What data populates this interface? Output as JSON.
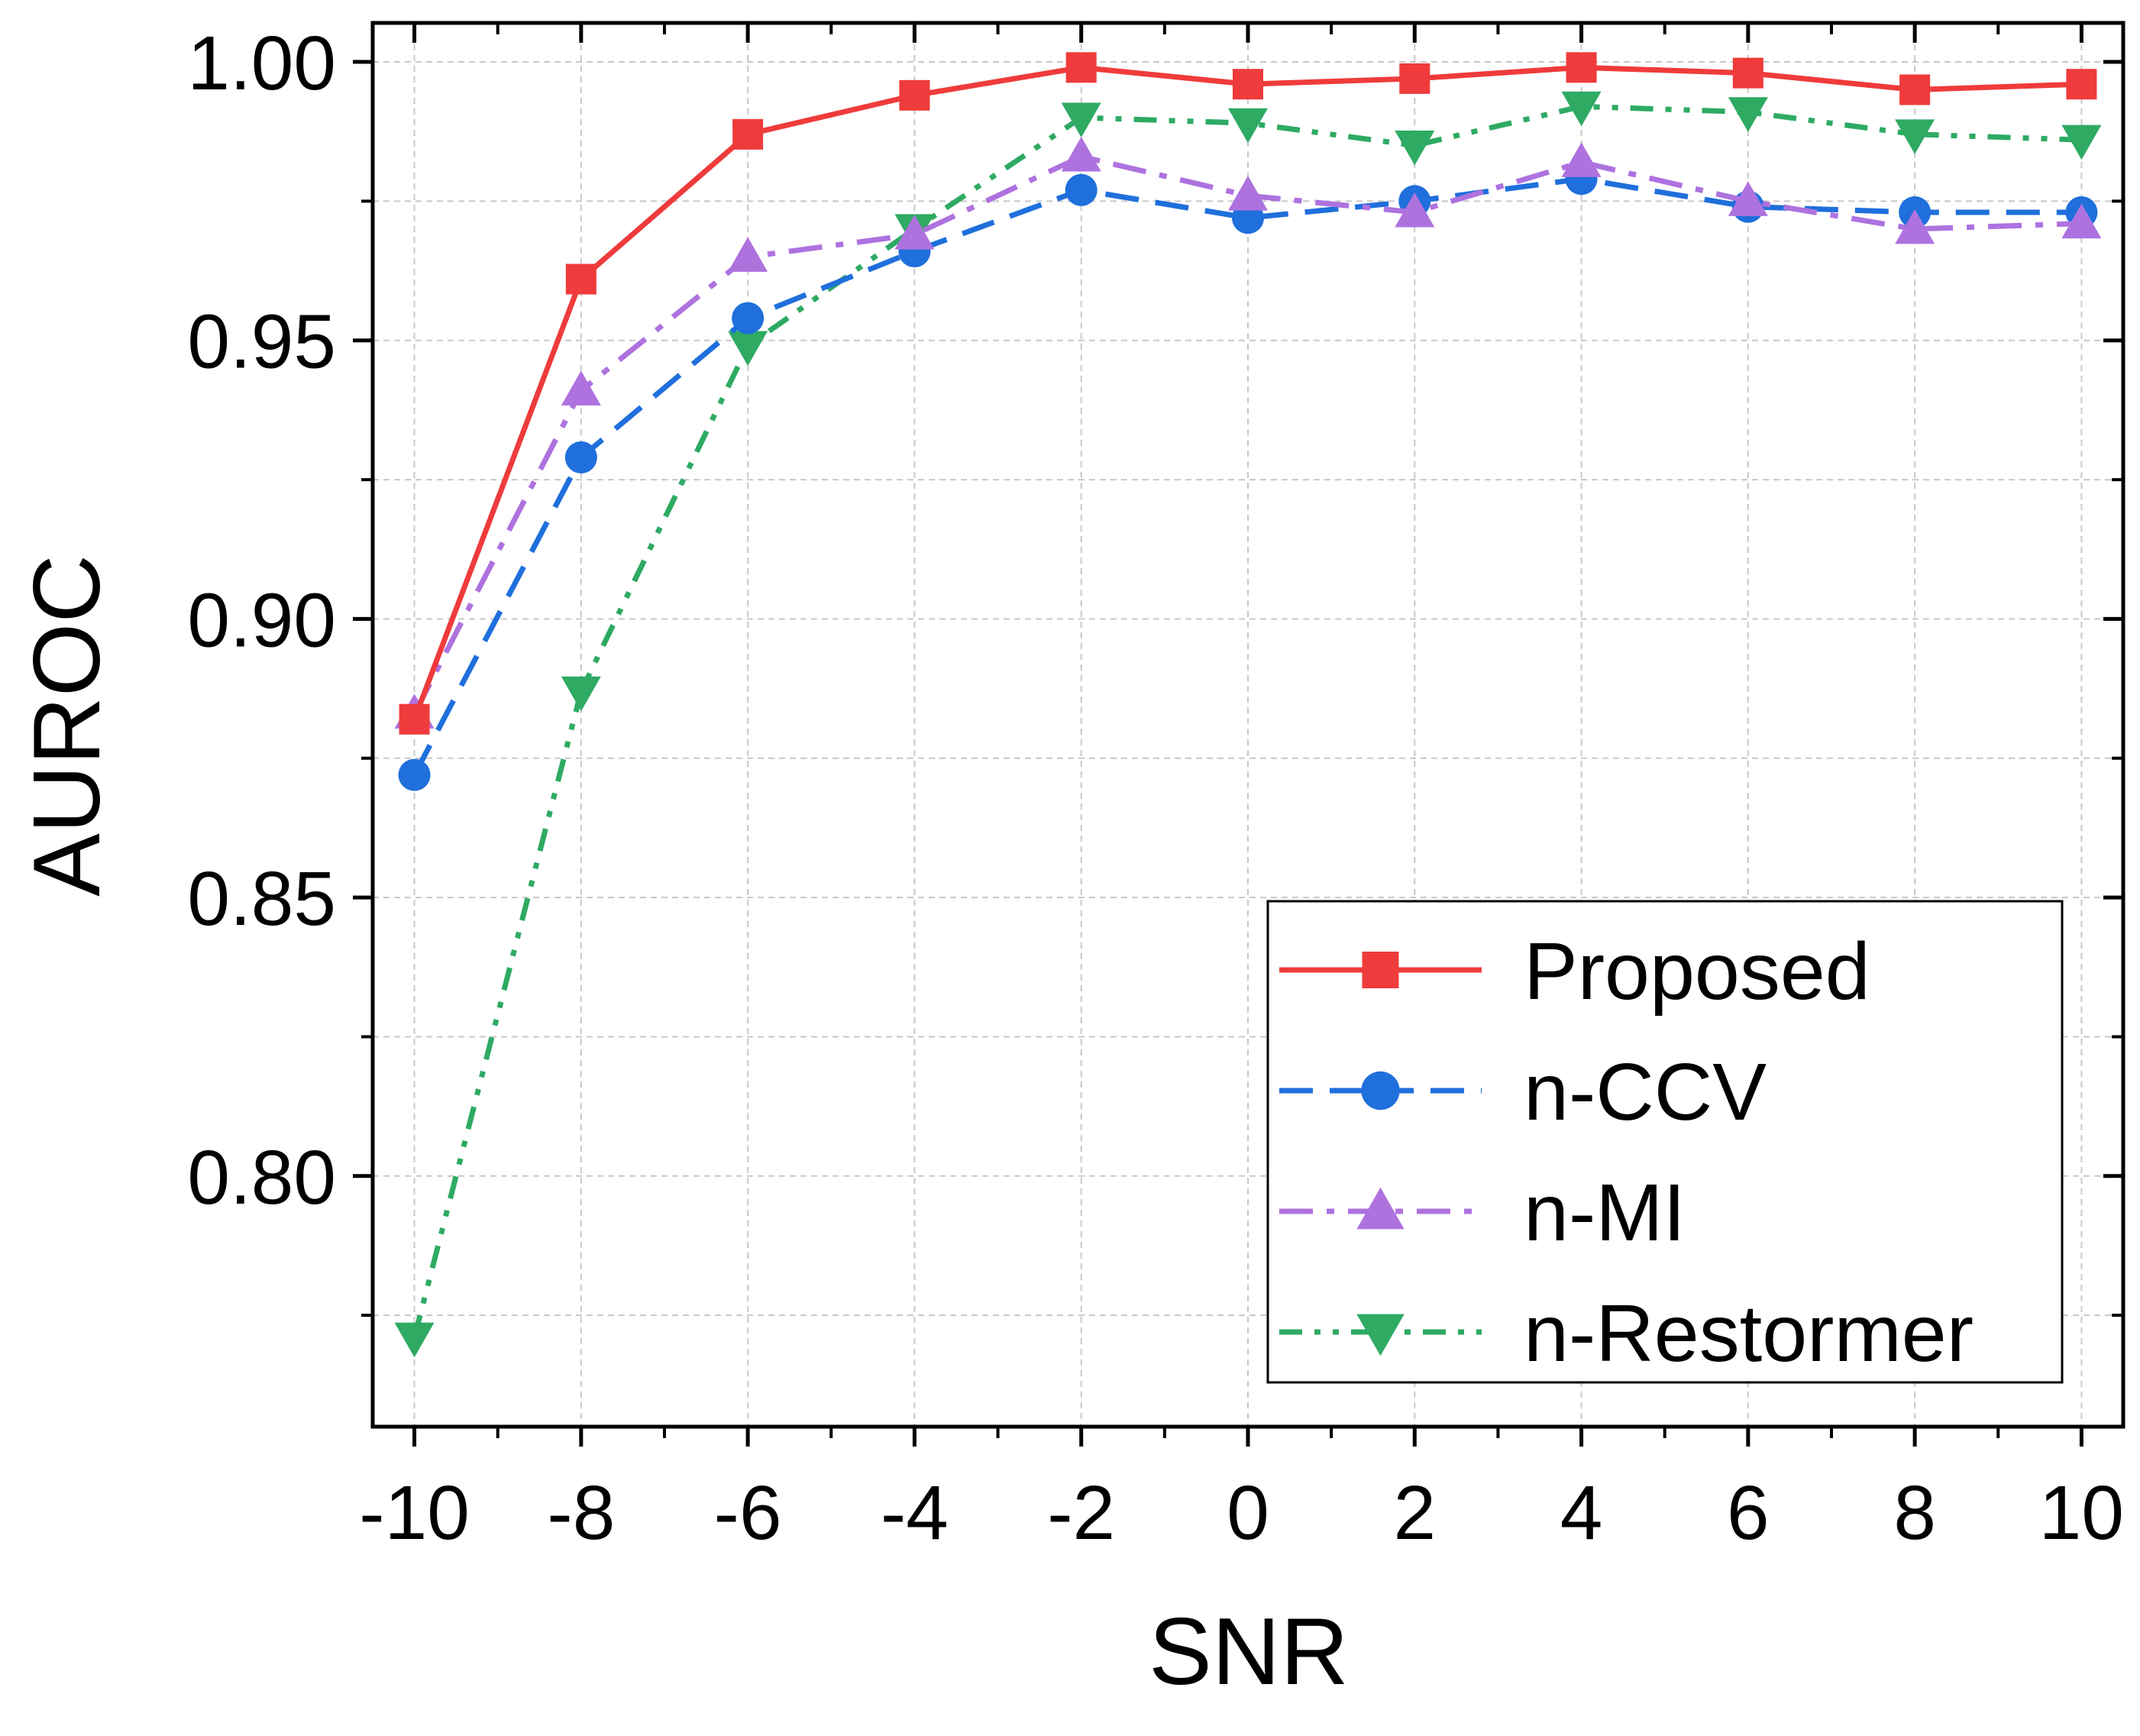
{
  "chart_data": {
    "type": "line",
    "title": "",
    "xlabel": "SNR",
    "ylabel": "AUROC",
    "x": [
      -10,
      -8,
      -6,
      -4,
      -2,
      0,
      2,
      4,
      6,
      8,
      10
    ],
    "xlim": [
      -10.5,
      10.5
    ],
    "ylim": [
      0.755,
      1.007
    ],
    "xticks": [
      "-10",
      "-8",
      "-6",
      "-4",
      "-2",
      "0",
      "2",
      "4",
      "6",
      "8",
      "10"
    ],
    "yticks": [
      "0.80",
      "0.85",
      "0.90",
      "0.95",
      "1.00"
    ],
    "grid": true,
    "legend_position": "bottom-right",
    "series": [
      {
        "name": "Proposed",
        "color": "#ef3b3b",
        "marker": "square",
        "dash": "solid",
        "values": [
          0.882,
          0.961,
          0.987,
          0.994,
          0.999,
          0.996,
          0.997,
          0.999,
          0.998,
          0.995,
          0.996
        ]
      },
      {
        "name": "n-CCV",
        "color": "#1f6fdc",
        "marker": "circle",
        "dash": "dash",
        "values": [
          0.872,
          0.929,
          0.954,
          0.966,
          0.977,
          0.972,
          0.975,
          0.979,
          0.974,
          0.973,
          0.973
        ]
      },
      {
        "name": "n-MI",
        "color": "#ae72df",
        "marker": "triangle-up",
        "dash": "dash-dot",
        "values": [
          0.883,
          0.941,
          0.965,
          0.969,
          0.983,
          0.976,
          0.973,
          0.982,
          0.975,
          0.97,
          0.971
        ]
      },
      {
        "name": "n-Restormer",
        "color": "#2eaa63",
        "marker": "triangle-down",
        "dash": "dash-dot-dot",
        "values": [
          0.771,
          0.887,
          0.949,
          0.97,
          0.99,
          0.989,
          0.985,
          0.992,
          0.991,
          0.987,
          0.986
        ]
      }
    ]
  }
}
